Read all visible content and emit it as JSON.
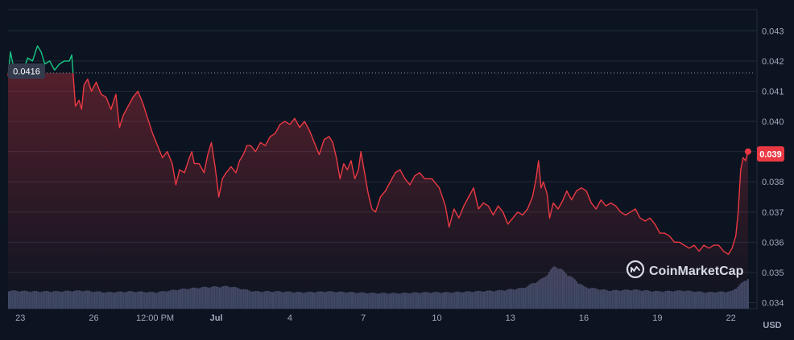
{
  "chart_data": {
    "type": "line",
    "title": "",
    "xlabel": "",
    "ylabel": "",
    "unit_label": "USD",
    "ylim": [
      0.0338,
      0.0437
    ],
    "y_ticks": [
      "0.043",
      "0.042",
      "0.041",
      "0.040",
      "0.039",
      "0.038",
      "0.037",
      "0.036",
      "0.035",
      "0.034"
    ],
    "x_ticks": [
      {
        "label": "23",
        "x": 0.5
      },
      {
        "label": "26",
        "x": 3.5
      },
      {
        "label": "12:00 PM",
        "x": 6.0
      },
      {
        "label": "Jul",
        "x": 8.5
      },
      {
        "label": "4",
        "x": 11.5
      },
      {
        "label": "7",
        "x": 14.5
      },
      {
        "label": "10",
        "x": 17.5
      },
      {
        "label": "13",
        "x": 20.5
      },
      {
        "label": "16",
        "x": 23.5
      },
      {
        "label": "19",
        "x": 26.5
      },
      {
        "label": "22",
        "x": 29.5
      }
    ],
    "reference_price": 0.0416,
    "reference_label": "0.0416",
    "current_label": "0.039",
    "series": [
      {
        "values": [
          [
            0.0,
            0.0415
          ],
          [
            0.1,
            0.0423
          ],
          [
            0.25,
            0.0417
          ],
          [
            0.4,
            0.0419
          ],
          [
            0.6,
            0.0416
          ],
          [
            0.8,
            0.0421
          ],
          [
            1.0,
            0.042
          ],
          [
            1.2,
            0.0425
          ],
          [
            1.35,
            0.0423
          ],
          [
            1.5,
            0.0419
          ],
          [
            1.7,
            0.042
          ],
          [
            1.9,
            0.0417
          ],
          [
            2.1,
            0.0419
          ],
          [
            2.3,
            0.042
          ],
          [
            2.5,
            0.042
          ],
          [
            2.6,
            0.0422
          ],
          [
            2.75,
            0.0405
          ],
          [
            2.9,
            0.0407
          ],
          [
            3.0,
            0.0404
          ],
          [
            3.1,
            0.0412
          ],
          [
            3.25,
            0.0414
          ],
          [
            3.4,
            0.041
          ],
          [
            3.6,
            0.0413
          ],
          [
            3.8,
            0.0409
          ],
          [
            4.0,
            0.0408
          ],
          [
            4.2,
            0.0404
          ],
          [
            4.4,
            0.0409
          ],
          [
            4.55,
            0.0398
          ],
          [
            4.7,
            0.0402
          ],
          [
            4.9,
            0.0405
          ],
          [
            5.1,
            0.0408
          ],
          [
            5.3,
            0.041
          ],
          [
            5.5,
            0.0406
          ],
          [
            5.7,
            0.0401
          ],
          [
            5.9,
            0.0396
          ],
          [
            6.1,
            0.0392
          ],
          [
            6.3,
            0.0388
          ],
          [
            6.5,
            0.039
          ],
          [
            6.7,
            0.0386
          ],
          [
            6.85,
            0.0379
          ],
          [
            7.0,
            0.0384
          ],
          [
            7.2,
            0.0383
          ],
          [
            7.4,
            0.0388
          ],
          [
            7.5,
            0.039
          ],
          [
            7.6,
            0.0386
          ],
          [
            7.8,
            0.0386
          ],
          [
            8.0,
            0.0383
          ],
          [
            8.15,
            0.0389
          ],
          [
            8.3,
            0.0393
          ],
          [
            8.45,
            0.0385
          ],
          [
            8.6,
            0.0375
          ],
          [
            8.75,
            0.0381
          ],
          [
            8.9,
            0.0383
          ],
          [
            9.1,
            0.0385
          ],
          [
            9.3,
            0.0383
          ],
          [
            9.45,
            0.0387
          ],
          [
            9.6,
            0.0389
          ],
          [
            9.75,
            0.0392
          ],
          [
            9.9,
            0.0392
          ],
          [
            10.1,
            0.039
          ],
          [
            10.3,
            0.0393
          ],
          [
            10.5,
            0.0392
          ],
          [
            10.7,
            0.0395
          ],
          [
            10.9,
            0.0396
          ],
          [
            11.1,
            0.0399
          ],
          [
            11.3,
            0.04
          ],
          [
            11.5,
            0.0399
          ],
          [
            11.7,
            0.0401
          ],
          [
            11.9,
            0.0398
          ],
          [
            12.1,
            0.04
          ],
          [
            12.3,
            0.0397
          ],
          [
            12.5,
            0.0393
          ],
          [
            12.7,
            0.0389
          ],
          [
            12.9,
            0.0394
          ],
          [
            13.1,
            0.0395
          ],
          [
            13.25,
            0.0393
          ],
          [
            13.4,
            0.0388
          ],
          [
            13.55,
            0.0381
          ],
          [
            13.7,
            0.0386
          ],
          [
            13.85,
            0.0384
          ],
          [
            14.0,
            0.0387
          ],
          [
            14.15,
            0.0381
          ],
          [
            14.3,
            0.0384
          ],
          [
            14.4,
            0.039
          ],
          [
            14.55,
            0.0383
          ],
          [
            14.7,
            0.0376
          ],
          [
            14.85,
            0.0371
          ],
          [
            15.0,
            0.037
          ],
          [
            15.2,
            0.0375
          ],
          [
            15.4,
            0.0377
          ],
          [
            15.6,
            0.038
          ],
          [
            15.8,
            0.0383
          ],
          [
            16.0,
            0.0384
          ],
          [
            16.2,
            0.0381
          ],
          [
            16.4,
            0.0379
          ],
          [
            16.6,
            0.0382
          ],
          [
            16.8,
            0.0383
          ],
          [
            17.0,
            0.0381
          ],
          [
            17.3,
            0.0381
          ],
          [
            17.6,
            0.0378
          ],
          [
            17.85,
            0.0372
          ],
          [
            18.0,
            0.0365
          ],
          [
            18.2,
            0.0371
          ],
          [
            18.4,
            0.0368
          ],
          [
            18.6,
            0.0372
          ],
          [
            18.8,
            0.0375
          ],
          [
            19.0,
            0.0378
          ],
          [
            19.2,
            0.0371
          ],
          [
            19.4,
            0.0373
          ],
          [
            19.6,
            0.0372
          ],
          [
            19.8,
            0.0369
          ],
          [
            20.0,
            0.0372
          ],
          [
            20.2,
            0.037
          ],
          [
            20.4,
            0.0366
          ],
          [
            20.6,
            0.0368
          ],
          [
            20.8,
            0.037
          ],
          [
            21.0,
            0.0369
          ],
          [
            21.2,
            0.0371
          ],
          [
            21.4,
            0.0375
          ],
          [
            21.55,
            0.0381
          ],
          [
            21.65,
            0.0387
          ],
          [
            21.75,
            0.0378
          ],
          [
            21.85,
            0.038
          ],
          [
            22.0,
            0.0376
          ],
          [
            22.1,
            0.0368
          ],
          [
            22.25,
            0.0373
          ],
          [
            22.45,
            0.0371
          ],
          [
            22.65,
            0.0374
          ],
          [
            22.8,
            0.0377
          ],
          [
            23.0,
            0.0374
          ],
          [
            23.2,
            0.0377
          ],
          [
            23.4,
            0.0378
          ],
          [
            23.6,
            0.0377
          ],
          [
            23.8,
            0.0373
          ],
          [
            24.0,
            0.0371
          ],
          [
            24.2,
            0.0374
          ],
          [
            24.4,
            0.0372
          ],
          [
            24.6,
            0.0373
          ],
          [
            24.8,
            0.0372
          ],
          [
            25.0,
            0.037
          ],
          [
            25.2,
            0.0369
          ],
          [
            25.4,
            0.037
          ],
          [
            25.6,
            0.0371
          ],
          [
            25.8,
            0.0368
          ],
          [
            26.0,
            0.0367
          ],
          [
            26.2,
            0.0368
          ],
          [
            26.4,
            0.0366
          ],
          [
            26.6,
            0.0363
          ],
          [
            26.8,
            0.0363
          ],
          [
            27.0,
            0.0362
          ],
          [
            27.2,
            0.036
          ],
          [
            27.4,
            0.036
          ],
          [
            27.6,
            0.0359
          ],
          [
            27.8,
            0.0358
          ],
          [
            28.0,
            0.0359
          ],
          [
            28.2,
            0.0357
          ],
          [
            28.4,
            0.0359
          ],
          [
            28.6,
            0.0358
          ],
          [
            28.8,
            0.0359
          ],
          [
            29.0,
            0.0359
          ],
          [
            29.2,
            0.0357
          ],
          [
            29.4,
            0.0356
          ],
          [
            29.55,
            0.0358
          ],
          [
            29.7,
            0.0362
          ],
          [
            29.8,
            0.037
          ],
          [
            29.9,
            0.0384
          ],
          [
            30.0,
            0.0388
          ],
          [
            30.1,
            0.0387
          ],
          [
            30.2,
            0.039
          ]
        ]
      }
    ],
    "volume": [
      [
        0.0,
        0.42
      ],
      [
        1.0,
        0.4
      ],
      [
        2.0,
        0.4
      ],
      [
        3.0,
        0.42
      ],
      [
        4.0,
        0.38
      ],
      [
        5.0,
        0.4
      ],
      [
        6.0,
        0.38
      ],
      [
        7.0,
        0.45
      ],
      [
        8.0,
        0.5
      ],
      [
        9.0,
        0.52
      ],
      [
        10.0,
        0.4
      ],
      [
        11.0,
        0.4
      ],
      [
        12.0,
        0.38
      ],
      [
        13.0,
        0.4
      ],
      [
        14.0,
        0.38
      ],
      [
        15.0,
        0.36
      ],
      [
        16.0,
        0.36
      ],
      [
        17.0,
        0.38
      ],
      [
        18.0,
        0.38
      ],
      [
        19.0,
        0.4
      ],
      [
        20.0,
        0.42
      ],
      [
        21.0,
        0.48
      ],
      [
        21.8,
        0.7
      ],
      [
        22.3,
        1.0
      ],
      [
        22.8,
        0.8
      ],
      [
        23.5,
        0.5
      ],
      [
        24.5,
        0.42
      ],
      [
        25.5,
        0.44
      ],
      [
        26.5,
        0.4
      ],
      [
        27.5,
        0.42
      ],
      [
        28.5,
        0.38
      ],
      [
        29.5,
        0.4
      ],
      [
        30.2,
        0.72
      ]
    ],
    "colors": {
      "background": "#0d1421",
      "grid": "#222a3a",
      "down": "#ea3943",
      "up": "#16c784",
      "volume": "#3f4965",
      "label_bg": "#323a4c",
      "axis_text": "#a1a7bb"
    }
  },
  "watermark": {
    "brand": "CoinMarketCap",
    "icon": "coinmarketcap-logo-icon"
  }
}
